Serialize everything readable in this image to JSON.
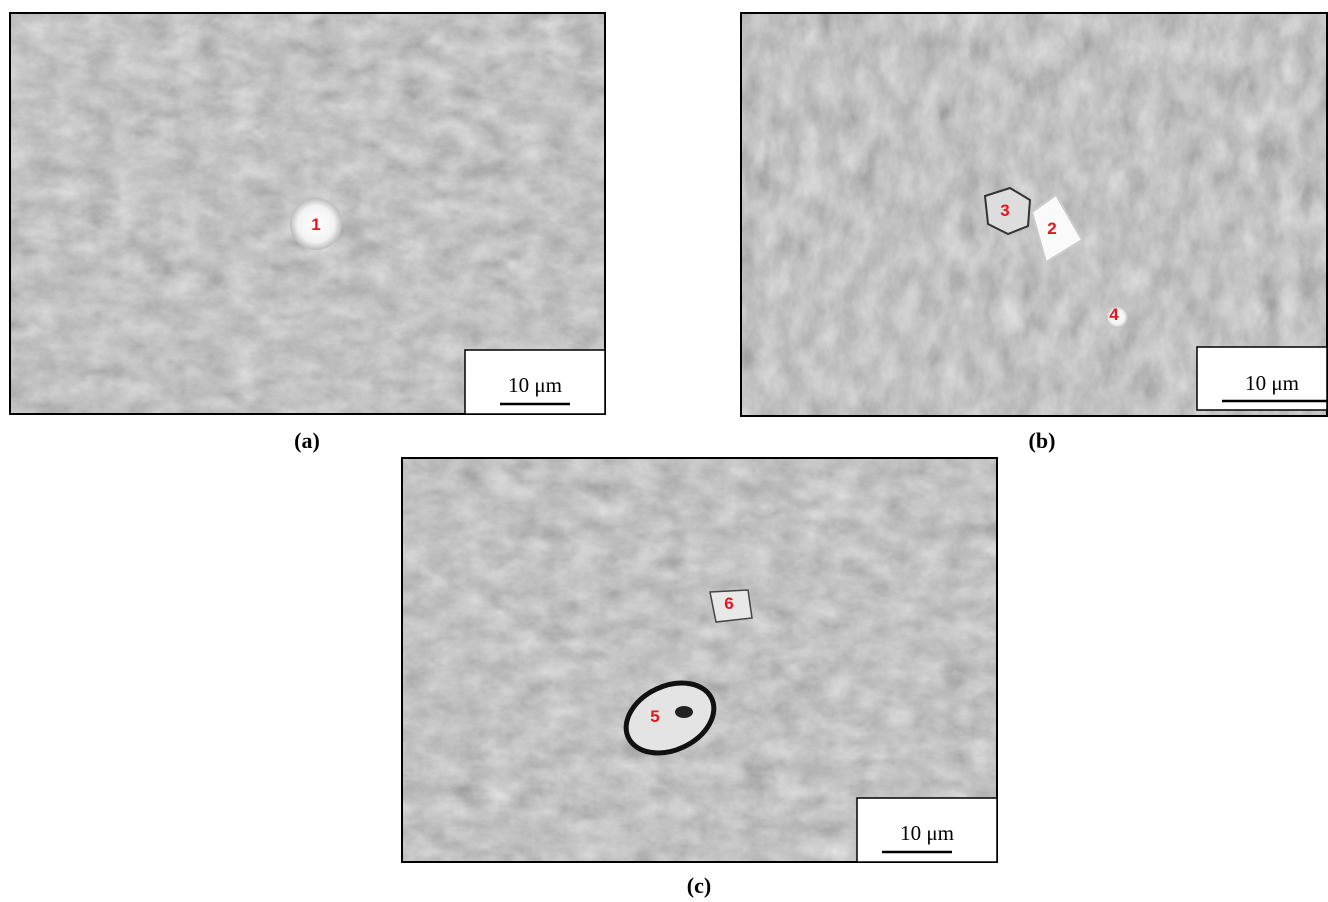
{
  "panels": [
    {
      "caption": "(a)",
      "scale_bar": "10 μm",
      "markers": [
        "1"
      ]
    },
    {
      "caption": "(b)",
      "scale_bar": "10 μm",
      "markers": [
        "3",
        "2",
        "4"
      ]
    },
    {
      "caption": "(c)",
      "scale_bar": "10 μm",
      "markers": [
        "6",
        "5"
      ]
    }
  ]
}
